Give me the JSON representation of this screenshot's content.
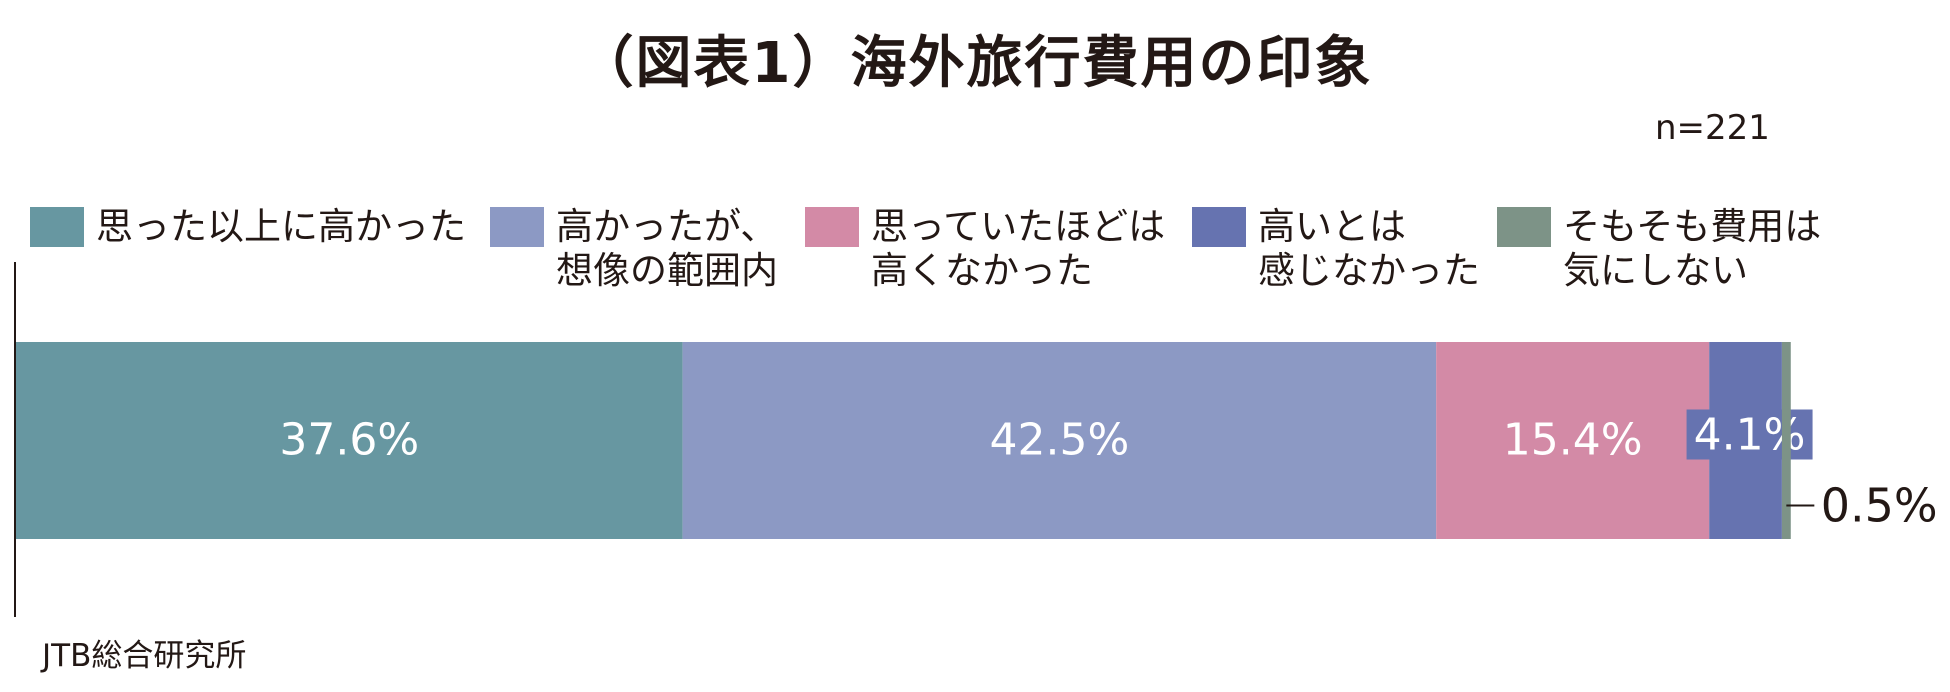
{
  "title": "（図表1）海外旅行費用の印象",
  "sample_size": "n=221",
  "source": "JTB総合研究所",
  "chart_data": {
    "type": "bar",
    "orientation": "horizontal-stacked-100",
    "categories": [
      ""
    ],
    "series": [
      {
        "name": "思った以上に高かった",
        "values": [
          37.6
        ],
        "label": "37.6%",
        "color": "#6797a1"
      },
      {
        "name": "高かったが、\n想像の範囲内",
        "values": [
          42.5
        ],
        "label": "42.5%",
        "color": "#8c99c4"
      },
      {
        "name": "思っていたほどは\n高くなかった",
        "values": [
          15.4
        ],
        "label": "15.4%",
        "color": "#d38aa6"
      },
      {
        "name": "高いとは\n感じなかった",
        "values": [
          4.1
        ],
        "label": "4.1%",
        "color": "#6673b0"
      },
      {
        "name": "そもそも費用は\n気にしない",
        "values": [
          0.5
        ],
        "label": "0.5%",
        "color": "#7d9387"
      }
    ],
    "xlim": [
      0,
      100
    ],
    "legend": "top",
    "grid": false
  }
}
